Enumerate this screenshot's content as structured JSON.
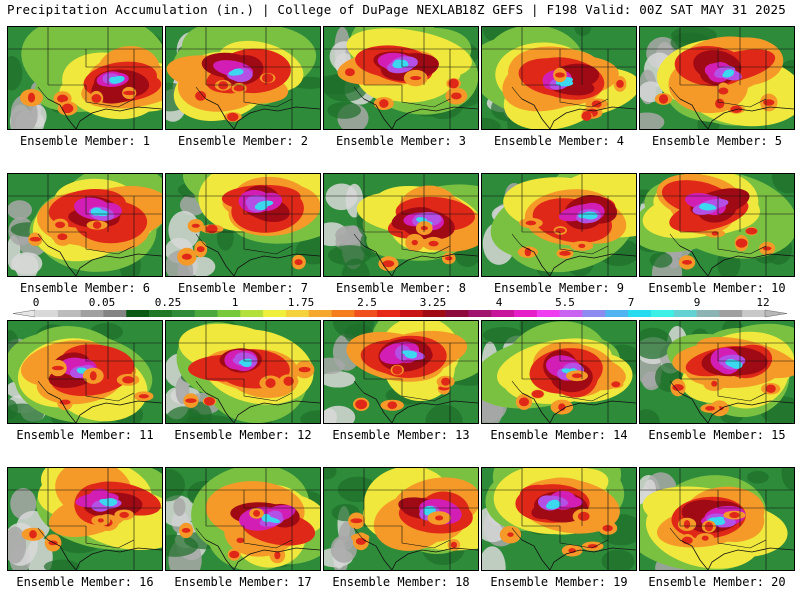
{
  "header": {
    "left": "Precipitation Accumulation (in.) | College of DuPage NEXLAB",
    "right": "18Z GEFS | F198 Valid: 00Z SAT MAY 31 2025"
  },
  "panels": [
    {
      "label": "Ensemble Member: 1"
    },
    {
      "label": "Ensemble Member: 2"
    },
    {
      "label": "Ensemble Member: 3"
    },
    {
      "label": "Ensemble Member: 4"
    },
    {
      "label": "Ensemble Member: 5"
    },
    {
      "label": "Ensemble Member: 6"
    },
    {
      "label": "Ensemble Member: 7"
    },
    {
      "label": "Ensemble Member: 8"
    },
    {
      "label": "Ensemble Member: 9"
    },
    {
      "label": "Ensemble Member: 10"
    },
    {
      "label": "Ensemble Member: 11"
    },
    {
      "label": "Ensemble Member: 12"
    },
    {
      "label": "Ensemble Member: 13"
    },
    {
      "label": "Ensemble Member: 14"
    },
    {
      "label": "Ensemble Member: 15"
    },
    {
      "label": "Ensemble Member: 16"
    },
    {
      "label": "Ensemble Member: 17"
    },
    {
      "label": "Ensemble Member: 18"
    },
    {
      "label": "Ensemble Member: 19"
    },
    {
      "label": "Ensemble Member: 20"
    }
  ],
  "colorbar": {
    "tick_labels": [
      "0",
      "0.05",
      "0.25",
      "1",
      "1.75",
      "2.5",
      "3.25",
      "4",
      "5.5",
      "7",
      "9",
      "12"
    ],
    "colors": [
      "#d9d9d9",
      "#bcbcbc",
      "#a0a0a0",
      "#848484",
      "#0a5a14",
      "#1e7828",
      "#2e8b3a",
      "#4aa83c",
      "#78c83c",
      "#b4e03c",
      "#f0f03c",
      "#f5d23c",
      "#f5a82d",
      "#f57d1e",
      "#f0501e",
      "#e62814",
      "#c81414",
      "#a00a14",
      "#8c0a3c",
      "#a0146e",
      "#c8149a",
      "#e61ec8",
      "#f03cf0",
      "#c864f0",
      "#8c8cf0",
      "#50b4f0",
      "#28dcf0",
      "#3cf0e6",
      "#64d2d2",
      "#8cb4b4",
      "#a0a0a0",
      "#c8c8c8"
    ]
  },
  "map_colors": {
    "bg": "#2e8b3a",
    "dark_green": "#1e6e2a",
    "light_green": "#7ac142",
    "yellow": "#f0e83c",
    "orange": "#f59a28",
    "red": "#e02818",
    "darkred": "#a00a14",
    "magenta": "#d21eb4",
    "purple": "#b450e6",
    "cyan": "#3cd8f0",
    "gray": "#a8a8a8"
  }
}
